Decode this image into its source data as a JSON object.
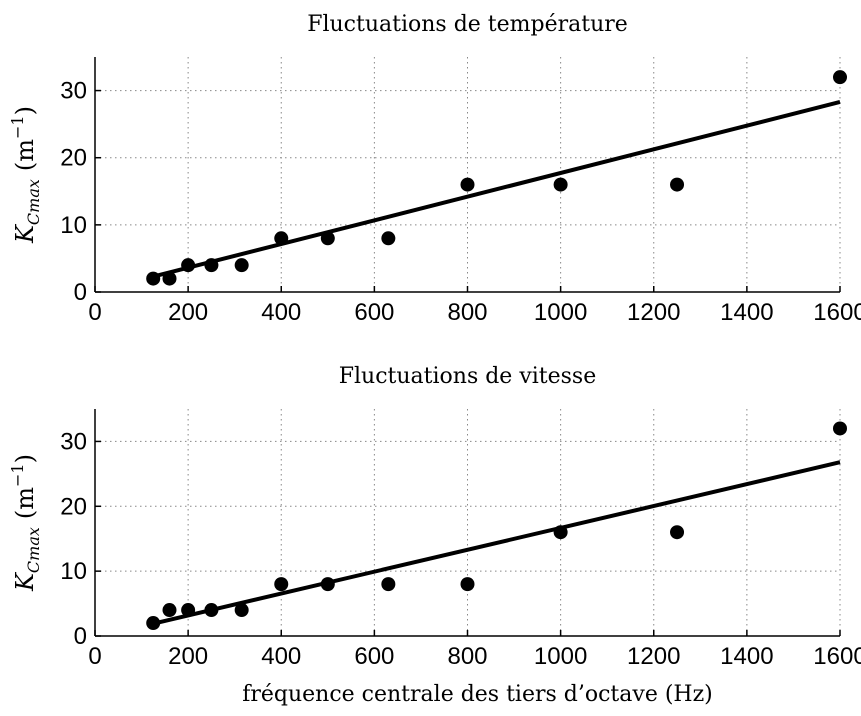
{
  "chart_data": [
    {
      "type": "scatter",
      "title": "Fluctuations de température",
      "xlabel": "",
      "ylabel_main": "K",
      "ylabel_sub": "Cmax",
      "ylabel_unit": "(m",
      "ylabel_exp": "−1",
      "ylabel_close": ")",
      "xlim": [
        0,
        1600
      ],
      "ylim": [
        0,
        35
      ],
      "xticks": [
        0,
        200,
        400,
        600,
        800,
        1000,
        1200,
        1400,
        1600
      ],
      "yticks": [
        0,
        10,
        20,
        30
      ],
      "grid": true,
      "points": {
        "x": [
          125,
          160,
          200,
          250,
          315,
          400,
          500,
          630,
          800,
          1000,
          1250,
          1600
        ],
        "y": [
          2,
          2,
          4,
          4,
          4,
          8,
          8,
          8,
          16,
          16,
          16,
          32
        ]
      },
      "fit_line": {
        "x": [
          125,
          1600
        ],
        "y": [
          2.3,
          28.3
        ]
      }
    },
    {
      "type": "scatter",
      "title": "Fluctuations de vitesse",
      "xlabel": "fréquence centrale des tiers d’octave (Hz)",
      "ylabel_main": "K",
      "ylabel_sub": "Cmax",
      "ylabel_unit": "(m",
      "ylabel_exp": "−1",
      "ylabel_close": ")",
      "xlim": [
        0,
        1600
      ],
      "ylim": [
        0,
        35
      ],
      "xticks": [
        0,
        200,
        400,
        600,
        800,
        1000,
        1200,
        1400,
        1600
      ],
      "yticks": [
        0,
        10,
        20,
        30
      ],
      "grid": true,
      "points": {
        "x": [
          125,
          160,
          200,
          250,
          315,
          400,
          500,
          630,
          800,
          1000,
          1250,
          1600
        ],
        "y": [
          2,
          4,
          4,
          4,
          4,
          8,
          8,
          8,
          8,
          16,
          16,
          32
        ]
      },
      "fit_line": {
        "x": [
          125,
          1600
        ],
        "y": [
          1.9,
          26.8
        ]
      }
    }
  ]
}
